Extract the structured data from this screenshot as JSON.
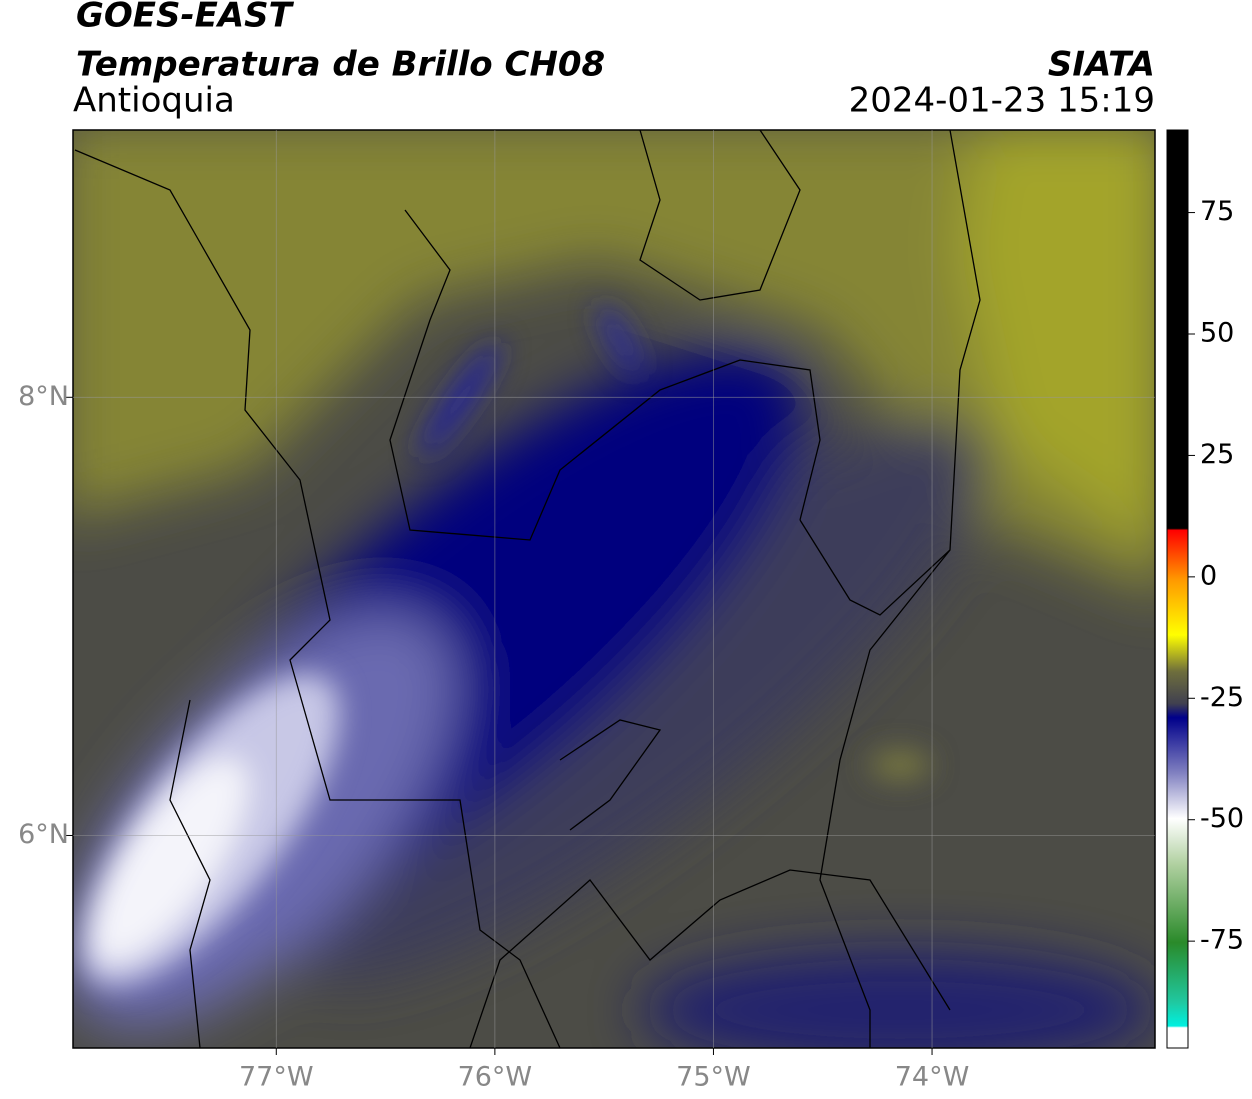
{
  "header": {
    "satellite": "GOES-EAST",
    "product": "Temperatura de Brillo CH08",
    "region": "Antioquia",
    "source": "SIATA",
    "datetime": "2024-01-23 15:19"
  },
  "map": {
    "xlim": [
      -77.93,
      -72.98
    ],
    "ylim": [
      5.03,
      9.22
    ],
    "xticks": [
      {
        "value": -77,
        "label": "77°W"
      },
      {
        "value": -76,
        "label": "76°W"
      },
      {
        "value": -75,
        "label": "75°W"
      },
      {
        "value": -74,
        "label": "74°W"
      }
    ],
    "yticks": [
      {
        "value": 6,
        "label": "6°N"
      },
      {
        "value": 8,
        "label": "8°N"
      }
    ],
    "grid": true
  },
  "colorbar": {
    "lim": [
      -97,
      92
    ],
    "ticks": [
      75,
      50,
      25,
      0,
      -25,
      -50,
      -75
    ]
  }
}
